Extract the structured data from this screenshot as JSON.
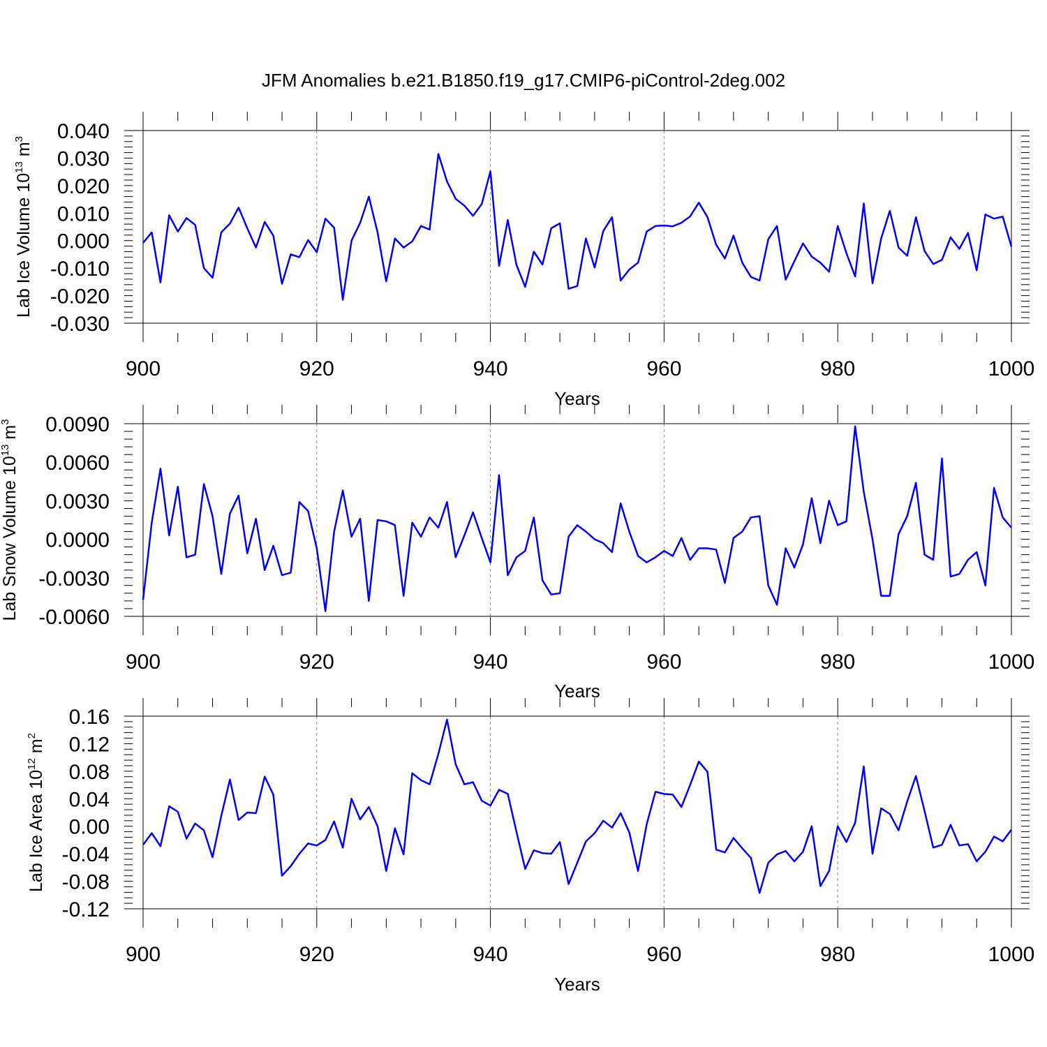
{
  "title": "JFM Anomalies b.e21.B1850.f19_g17.CMIP6-piControl-2deg.002",
  "chart_data": [
    {
      "type": "line",
      "ylabel": {
        "text": "Lab Ice Volume 10",
        "sup": "13",
        "unit": " m",
        "unit_sup": "3"
      },
      "xlabel": "Years",
      "xlim": [
        900,
        1000
      ],
      "ylim": [
        -0.03,
        0.04
      ],
      "xticks": [
        900,
        920,
        940,
        960,
        980,
        1000
      ],
      "yticks": [
        -0.03,
        -0.02,
        -0.01,
        0.0,
        0.01,
        0.02,
        0.03,
        0.04
      ],
      "ytick_labels": [
        "-0.030",
        "-0.020",
        "-0.010",
        "0.000",
        "0.010",
        "0.020",
        "0.030",
        "0.040"
      ],
      "ytick_minor_step": 0.002,
      "dashed_x_gridlines": [
        920,
        940,
        960
      ],
      "series": [
        {
          "name": "Lab Ice Volume",
          "color": "#0000ff",
          "x_start": 900,
          "values": [
            -0.0008,
            0.003,
            -0.0152,
            0.0092,
            0.0033,
            0.0082,
            0.0057,
            -0.01,
            -0.0135,
            0.003,
            0.0062,
            0.012,
            0.0045,
            -0.0025,
            0.0068,
            0.0018,
            -0.0157,
            -0.005,
            -0.006,
            0.0002,
            -0.0042,
            0.008,
            0.0047,
            -0.0215,
            0.0,
            0.0065,
            0.016,
            0.003,
            -0.0148,
            0.0008,
            -0.0025,
            -0.0003,
            0.0053,
            0.004,
            0.0315,
            0.0215,
            0.0152,
            0.0127,
            0.009,
            0.0133,
            0.0252,
            -0.0092,
            0.0075,
            -0.0088,
            -0.0168,
            -0.004,
            -0.0087,
            0.0045,
            0.0063,
            -0.0175,
            -0.0165,
            0.0008,
            -0.0098,
            0.0035,
            0.0085,
            -0.0145,
            -0.0105,
            -0.008,
            0.0033,
            0.0053,
            0.0055,
            0.0052,
            0.0065,
            0.0088,
            0.0138,
            0.0085,
            -0.0015,
            -0.0065,
            0.0018,
            -0.008,
            -0.0132,
            -0.0145,
            0.0005,
            0.0053,
            -0.0142,
            -0.0075,
            -0.001,
            -0.0058,
            -0.008,
            -0.0113,
            0.0053,
            -0.0045,
            -0.013,
            0.0135,
            -0.0155,
            0.0008,
            0.0108,
            -0.0025,
            -0.0055,
            0.0085,
            -0.0038,
            -0.0085,
            -0.007,
            0.0012,
            -0.003,
            0.0028,
            -0.0108,
            0.0095,
            0.008,
            0.0087,
            -0.0022
          ]
        }
      ]
    },
    {
      "type": "line",
      "ylabel": {
        "text": "Lab Snow Volume 10",
        "sup": "13",
        "unit": " m",
        "unit_sup": "3"
      },
      "xlabel": "Years",
      "xlim": [
        900,
        1000
      ],
      "ylim": [
        -0.006,
        0.009
      ],
      "xticks": [
        900,
        920,
        940,
        960,
        980,
        1000
      ],
      "yticks": [
        -0.006,
        -0.003,
        0.0,
        0.003,
        0.006,
        0.009
      ],
      "ytick_labels": [
        "-0.0060",
        "-0.0030",
        "0.0000",
        "0.0030",
        "0.0060",
        "0.0090"
      ],
      "ytick_minor_step": 0.0006,
      "dashed_x_gridlines": [
        920,
        940,
        960
      ],
      "series": [
        {
          "name": "Lab Snow Volume",
          "color": "#0000ff",
          "x_start": 900,
          "values": [
            -0.0047,
            0.0013,
            0.0055,
            0.0003,
            0.0041,
            -0.0014,
            -0.0012,
            0.0043,
            0.0018,
            -0.0027,
            0.002,
            0.0034,
            -0.0011,
            0.0016,
            -0.0024,
            -0.0005,
            -0.0028,
            -0.0026,
            0.0029,
            0.0022,
            -0.0007,
            -0.0056,
            0.0006,
            0.0038,
            0.0002,
            0.0016,
            -0.0048,
            0.0015,
            0.0014,
            0.0011,
            -0.0044,
            0.0013,
            0.0002,
            0.0017,
            0.0009,
            0.0029,
            -0.0014,
            0.0003,
            0.0021,
            0.0001,
            -0.0018,
            0.005,
            -0.0028,
            -0.0014,
            -0.0009,
            0.0017,
            -0.0032,
            -0.0043,
            -0.0042,
            0.0002,
            0.0011,
            0.0006,
            0.0,
            -0.0003,
            -0.001,
            0.0028,
            0.0006,
            -0.0013,
            -0.0018,
            -0.0014,
            -0.0009,
            -0.0013,
            0.0001,
            -0.0016,
            -0.0007,
            -0.0007,
            -0.0008,
            -0.0034,
            0.0001,
            0.0006,
            0.0017,
            0.0018,
            -0.0036,
            -0.0051,
            -0.0007,
            -0.0022,
            -0.0004,
            0.0032,
            -0.0003,
            0.003,
            0.0011,
            0.0014,
            0.0088,
            0.0037,
            0.0,
            -0.0044,
            -0.0044,
            0.0004,
            0.0018,
            0.0044,
            -0.0012,
            -0.0016,
            0.0063,
            -0.0029,
            -0.0027,
            -0.0016,
            -0.001,
            -0.0036,
            0.004,
            0.0017,
            0.0009
          ]
        }
      ]
    },
    {
      "type": "line",
      "ylabel": {
        "text": "Lab Ice Area 10",
        "sup": "12",
        "unit": " m",
        "unit_sup": "2"
      },
      "xlabel": "Years",
      "xlim": [
        900,
        1000
      ],
      "ylim": [
        -0.12,
        0.16
      ],
      "xticks": [
        900,
        920,
        940,
        960,
        980,
        1000
      ],
      "yticks": [
        -0.12,
        -0.08,
        -0.04,
        0.0,
        0.04,
        0.08,
        0.12,
        0.16
      ],
      "ytick_labels": [
        "-0.12",
        "-0.08",
        "-0.04",
        "0.00",
        "0.04",
        "0.08",
        "0.12",
        "0.16"
      ],
      "ytick_minor_step": 0.008,
      "dashed_x_gridlines": [
        920,
        940,
        960,
        980
      ],
      "series": [
        {
          "name": "Lab Ice Area",
          "color": "#0000ff",
          "x_start": 900,
          "values": [
            -0.027,
            -0.01,
            -0.029,
            0.029,
            0.021,
            -0.018,
            0.004,
            -0.006,
            -0.045,
            0.015,
            0.068,
            0.009,
            0.02,
            0.019,
            0.072,
            0.046,
            -0.072,
            -0.058,
            -0.04,
            -0.025,
            -0.028,
            -0.02,
            0.007,
            -0.031,
            0.04,
            0.01,
            0.028,
            0.0,
            -0.065,
            -0.003,
            -0.041,
            0.077,
            0.067,
            0.061,
            0.105,
            0.155,
            0.09,
            0.061,
            0.064,
            0.037,
            0.03,
            0.053,
            0.047,
            -0.008,
            -0.062,
            -0.035,
            -0.039,
            -0.04,
            -0.023,
            -0.084,
            -0.053,
            -0.022,
            -0.01,
            0.008,
            -0.002,
            0.019,
            -0.009,
            -0.065,
            0.003,
            0.05,
            0.047,
            0.046,
            0.028,
            0.06,
            0.094,
            0.079,
            -0.034,
            -0.038,
            -0.017,
            -0.032,
            -0.046,
            -0.097,
            -0.053,
            -0.041,
            -0.036,
            -0.051,
            -0.037,
            0.0,
            -0.087,
            -0.065,
            0.0,
            -0.023,
            0.005,
            0.087,
            -0.04,
            0.026,
            0.018,
            -0.006,
            0.036,
            0.073,
            0.022,
            -0.031,
            -0.027,
            0.002,
            -0.028,
            -0.026,
            -0.051,
            -0.037,
            -0.015,
            -0.022,
            -0.005
          ]
        }
      ]
    }
  ]
}
